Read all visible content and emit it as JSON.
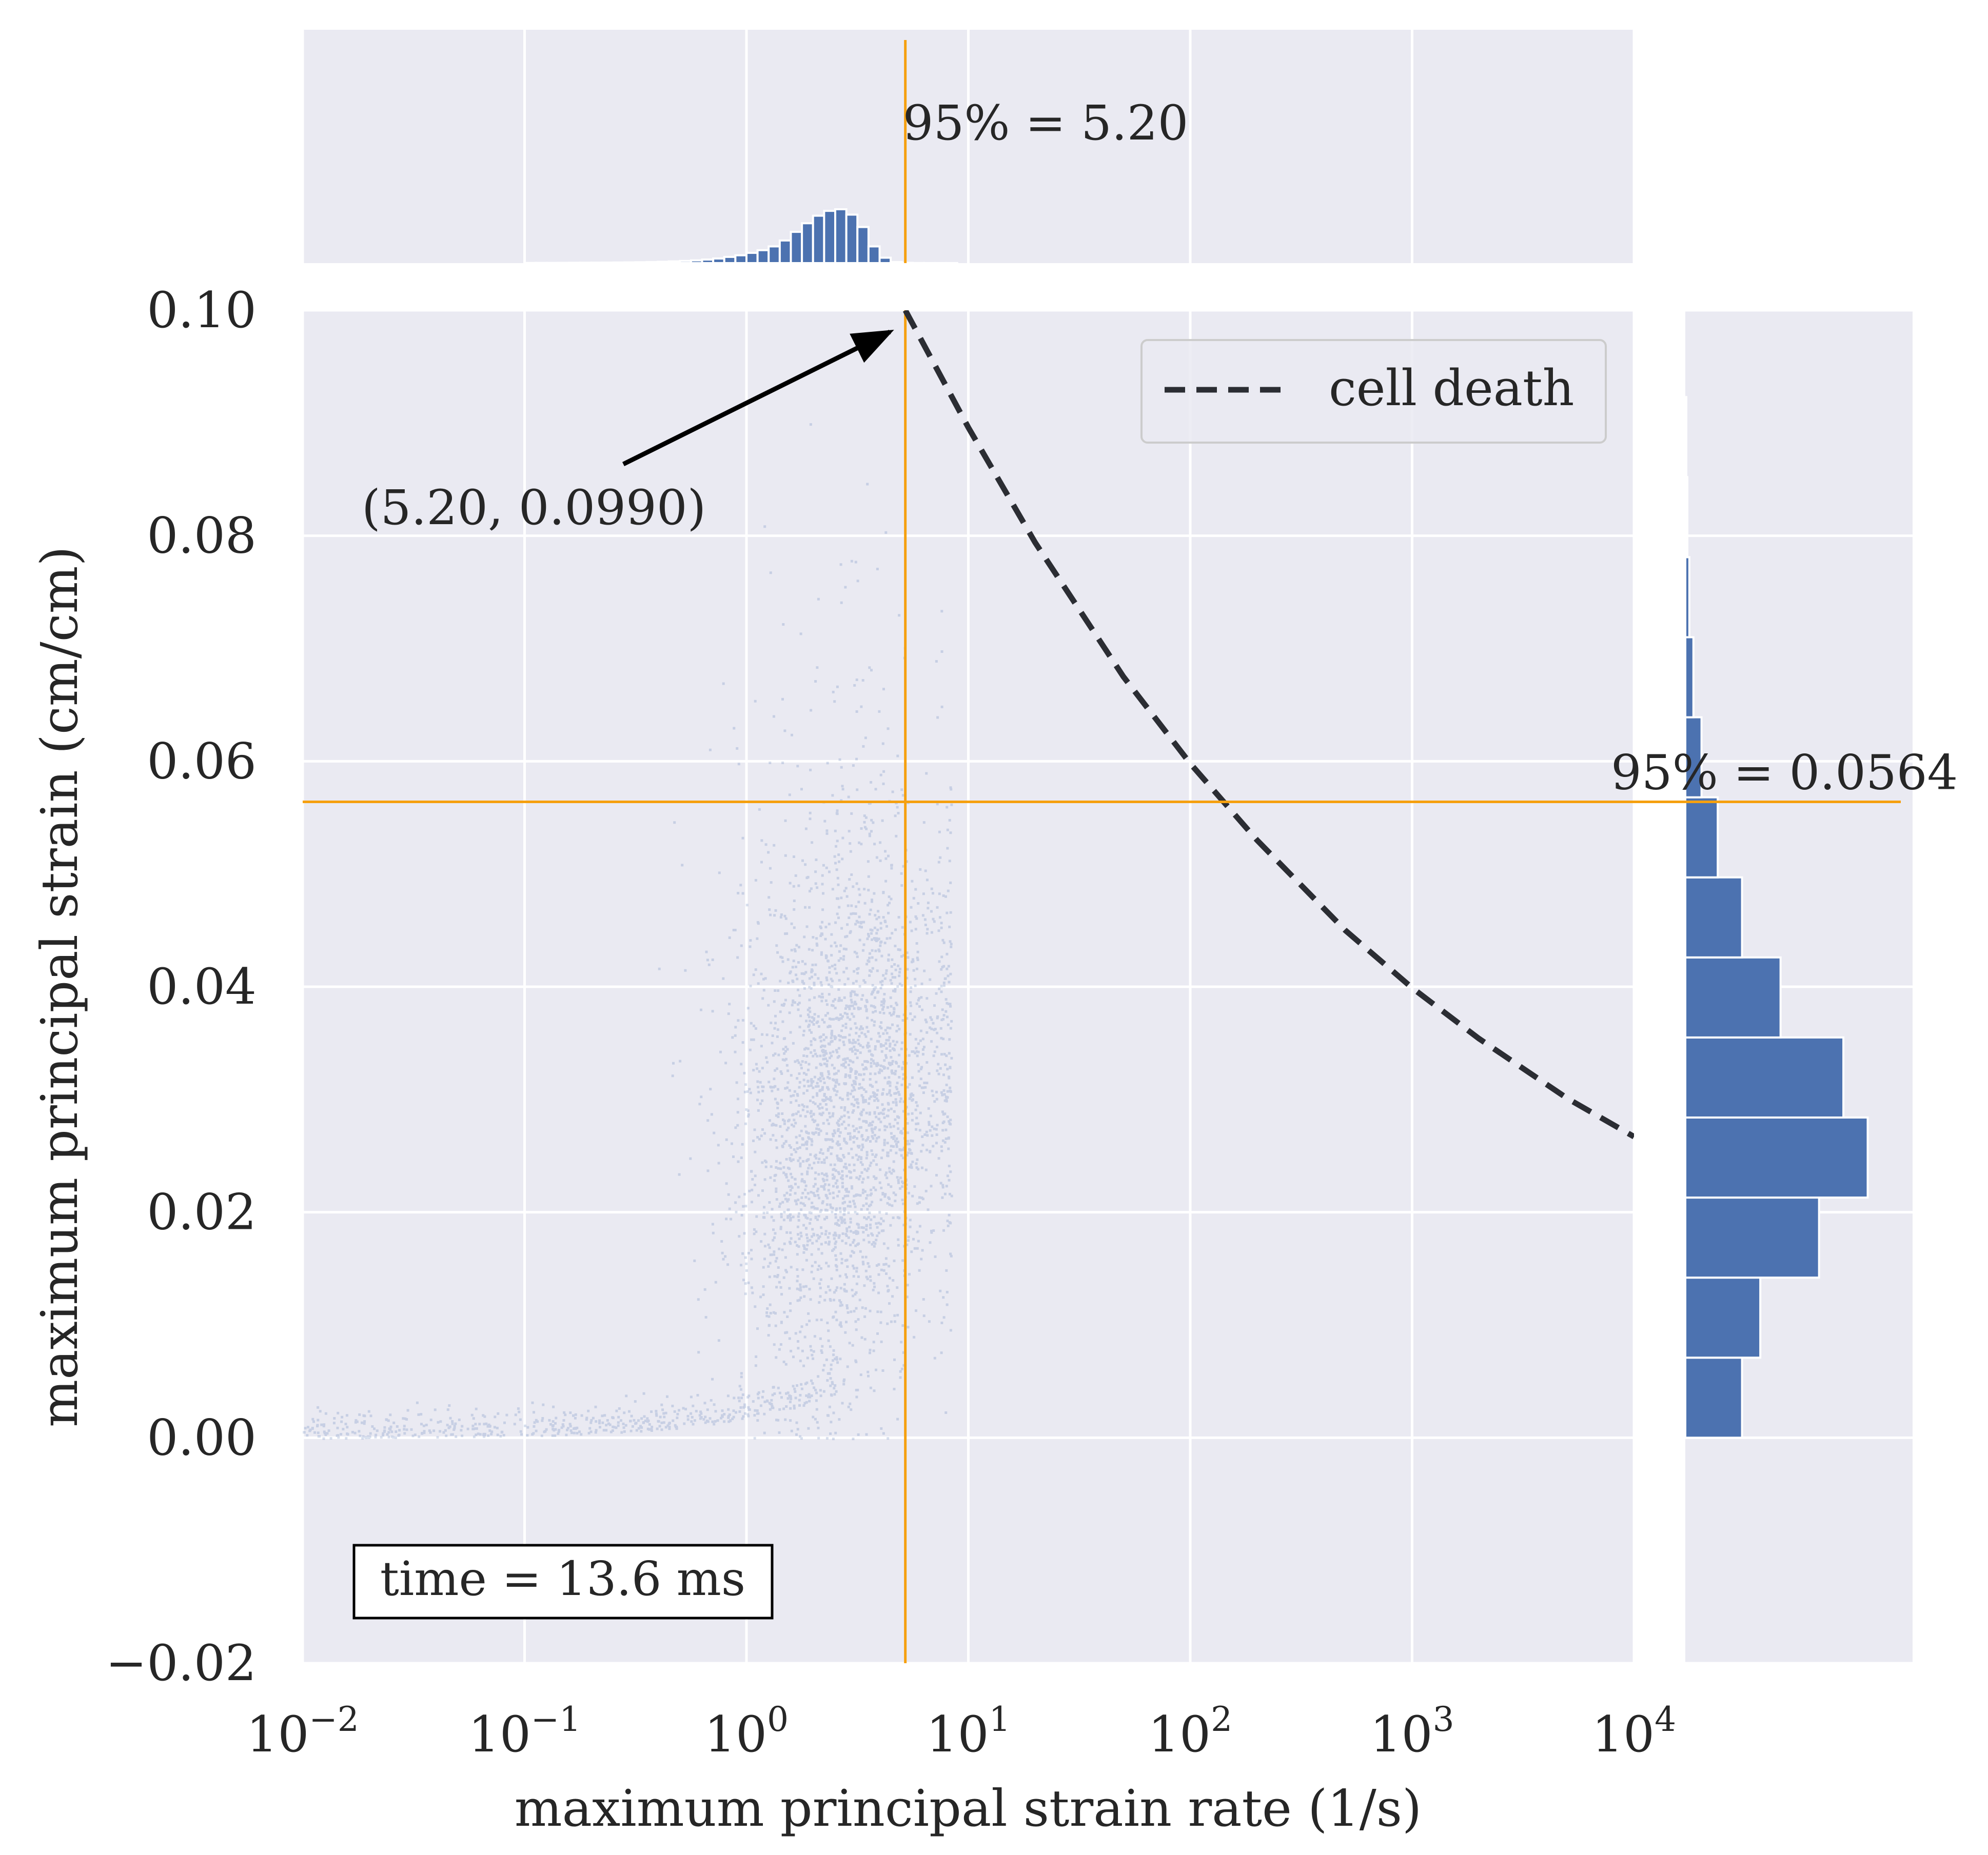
{
  "chart_data": {
    "type": "scatter",
    "xscale": "log",
    "xlabel": "maximum principal strain rate (1/s)",
    "ylabel": "maximum principal strain (cm/cm)",
    "xlim": [
      0.01,
      10000
    ],
    "ylim": [
      -0.02,
      0.1
    ],
    "x_ticks": [
      0.01,
      0.1,
      1,
      10,
      100,
      1000,
      10000
    ],
    "x_tick_labels": [
      {
        "base": "10",
        "exp": "−2"
      },
      {
        "base": "10",
        "exp": "−1"
      },
      {
        "base": "10",
        "exp": "0"
      },
      {
        "base": "10",
        "exp": "1"
      },
      {
        "base": "10",
        "exp": "2"
      },
      {
        "base": "10",
        "exp": "3"
      },
      {
        "base": "10",
        "exp": "4"
      }
    ],
    "y_ticks": [
      -0.02,
      0,
      0.02,
      0.04,
      0.06,
      0.08,
      0.1
    ],
    "y_tick_labels": [
      "−0.02",
      "0.00",
      "0.02",
      "0.04",
      "0.06",
      "0.08",
      "0.10"
    ],
    "grid": true,
    "background": "#eaeaf2",
    "colors": {
      "points": "#4c72b0",
      "bars": "#4c72b0",
      "threshold": "#f5a00f",
      "curve": "#2b2d33",
      "annotation": "#000000"
    },
    "scatter_cloud": {
      "description": "dense point cloud, hundreds of thousands of points",
      "x_center": 2.8,
      "y_center": 0.027,
      "x_range": [
        0.01,
        8
      ],
      "y_range": [
        0,
        0.08
      ]
    },
    "cell_death_curve": {
      "label": "cell death",
      "x": [
        5.2,
        10,
        20,
        50,
        100,
        200,
        500,
        1000,
        2000,
        5000,
        10000
      ],
      "y": [
        0.1,
        0.0896,
        0.0794,
        0.0675,
        0.0598,
        0.053,
        0.045,
        0.0399,
        0.0354,
        0.0301,
        0.0267
      ]
    },
    "legend": {
      "position": "top-right",
      "entries": [
        "cell death"
      ]
    },
    "threshold_x": {
      "value": 5.2,
      "label": "95% = 5.20"
    },
    "threshold_y": {
      "value": 0.0564,
      "label": "95% = 0.0564"
    },
    "annotation": {
      "text": "(5.20, 0.0990)",
      "x": 5.2,
      "y": 0.099
    },
    "time_box": {
      "text": "time = 13.6 ms"
    },
    "marginal_x_histogram": {
      "bin_edges_log10": [
        -1.0,
        -0.95,
        -0.9,
        -0.85,
        -0.8,
        -0.75,
        -0.7,
        -0.65,
        -0.6,
        -0.55,
        -0.5,
        -0.45,
        -0.4,
        -0.35,
        -0.3,
        -0.25,
        -0.2,
        -0.15,
        -0.1,
        -0.05,
        0.0,
        0.05,
        0.1,
        0.15,
        0.2,
        0.25,
        0.3,
        0.35,
        0.4,
        0.45,
        0.5,
        0.55,
        0.6,
        0.65,
        0.7,
        0.75,
        0.8,
        0.85,
        0.9,
        0.95
      ],
      "relative_heights": [
        0.003,
        0.004,
        0.004,
        0.005,
        0.006,
        0.007,
        0.008,
        0.009,
        0.011,
        0.013,
        0.016,
        0.02,
        0.025,
        0.032,
        0.04,
        0.05,
        0.065,
        0.085,
        0.115,
        0.145,
        0.19,
        0.24,
        0.31,
        0.42,
        0.58,
        0.74,
        0.88,
        0.97,
        1.0,
        0.9,
        0.67,
        0.31,
        0.1,
        0.02,
        0.005,
        0.002,
        0.001,
        0.001,
        0.001
      ]
    },
    "marginal_y_histogram": {
      "bin_edges": [
        0.0,
        0.0071,
        0.0142,
        0.0213,
        0.0284,
        0.0355,
        0.0426,
        0.0497,
        0.0568,
        0.0639,
        0.071,
        0.0781,
        0.0852,
        0.0923
      ],
      "relative_heights": [
        0.28,
        0.37,
        0.66,
        0.9,
        0.78,
        0.47,
        0.28,
        0.16,
        0.08,
        0.04,
        0.02,
        0.01,
        0.005
      ]
    }
  }
}
